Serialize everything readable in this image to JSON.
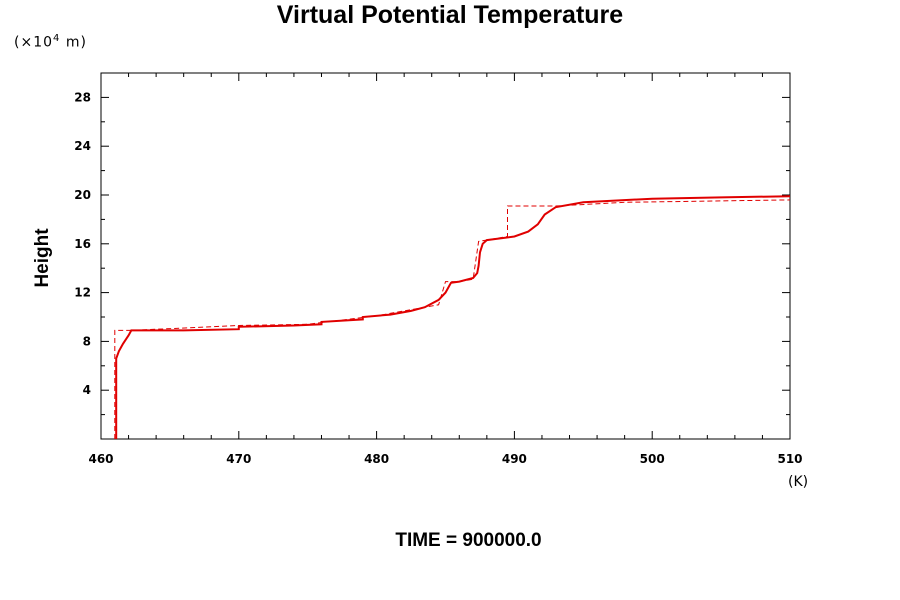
{
  "chart_data": {
    "type": "line",
    "title": "Virtual Potential Temperature",
    "y_unit_prefix": "(×10",
    "y_unit_exp": "4",
    "y_unit_suffix": " m)",
    "ylabel": "Height",
    "xlabel_unit": "(K)",
    "footer": "TIME = 900000.0",
    "xlim": [
      460,
      510
    ],
    "ylim": [
      0,
      30
    ],
    "xticks": [
      460,
      470,
      480,
      490,
      500,
      510
    ],
    "yticks": [
      4,
      8,
      12,
      16,
      20,
      24,
      28
    ],
    "series": [
      {
        "style": "solid",
        "color": "#e00000",
        "points": [
          [
            461.1,
            0.0
          ],
          [
            461.1,
            6.6
          ],
          [
            461.3,
            7.2
          ],
          [
            461.6,
            7.8
          ],
          [
            462.0,
            8.5
          ],
          [
            462.2,
            8.9
          ],
          [
            466.0,
            8.9
          ],
          [
            470.0,
            9.0
          ],
          [
            470.0,
            9.2
          ],
          [
            474.0,
            9.3
          ],
          [
            476.0,
            9.4
          ],
          [
            476.0,
            9.6
          ],
          [
            479.0,
            9.8
          ],
          [
            479.0,
            10.0
          ],
          [
            481.0,
            10.2
          ],
          [
            482.5,
            10.5
          ],
          [
            483.5,
            10.8
          ],
          [
            484.5,
            11.4
          ],
          [
            485.0,
            12.0
          ],
          [
            485.3,
            12.6
          ],
          [
            485.4,
            12.8
          ],
          [
            486.0,
            12.9
          ],
          [
            487.0,
            13.2
          ],
          [
            487.3,
            13.6
          ],
          [
            487.4,
            14.2
          ],
          [
            487.5,
            15.3
          ],
          [
            487.7,
            16.0
          ],
          [
            488.0,
            16.3
          ],
          [
            490.0,
            16.6
          ],
          [
            491.0,
            17.0
          ],
          [
            491.7,
            17.6
          ],
          [
            492.2,
            18.4
          ],
          [
            493.0,
            19.0
          ],
          [
            495.0,
            19.4
          ],
          [
            500.0,
            19.7
          ],
          [
            505.0,
            19.8
          ],
          [
            510.0,
            19.9
          ]
        ]
      },
      {
        "style": "dashed",
        "color": "#e00000",
        "points": [
          [
            461.0,
            0.0
          ],
          [
            461.0,
            8.9
          ],
          [
            462.2,
            8.9
          ],
          [
            470.0,
            9.3
          ],
          [
            475.0,
            9.4
          ],
          [
            480.0,
            10.1
          ],
          [
            484.5,
            11.0
          ],
          [
            485.0,
            12.9
          ],
          [
            486.0,
            12.9
          ],
          [
            487.0,
            13.1
          ],
          [
            487.4,
            16.2
          ],
          [
            489.5,
            16.6
          ],
          [
            489.5,
            19.1
          ],
          [
            493.0,
            19.1
          ],
          [
            498.0,
            19.4
          ],
          [
            510.0,
            19.6
          ]
        ]
      }
    ]
  }
}
